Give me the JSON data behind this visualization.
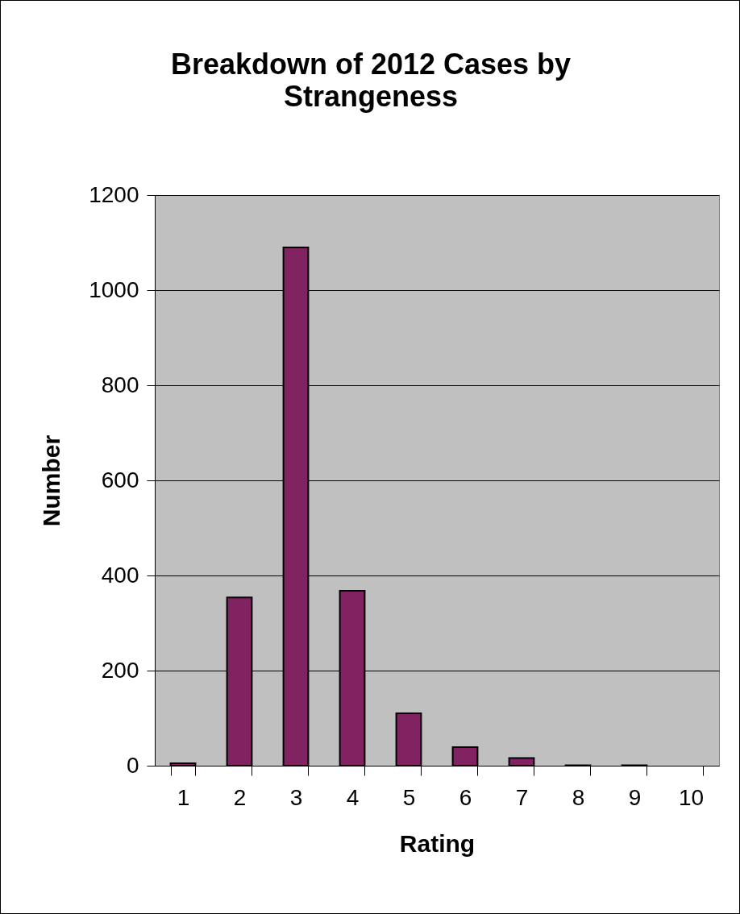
{
  "chart_data": {
    "type": "bar",
    "title": [
      "Breakdown of 2012 Cases by",
      "Strangeness"
    ],
    "xlabel": "Rating",
    "ylabel": "Number",
    "categories": [
      "1",
      "2",
      "3",
      "4",
      "5",
      "6",
      "7",
      "8",
      "9",
      "10"
    ],
    "values": [
      5,
      354,
      1090,
      368,
      110,
      39,
      16,
      1,
      1,
      0
    ],
    "color": "#812261",
    "ylim": [
      0,
      1200
    ],
    "yticks": [
      0,
      200,
      400,
      600,
      800,
      1000,
      1200
    ],
    "grid": "y"
  }
}
